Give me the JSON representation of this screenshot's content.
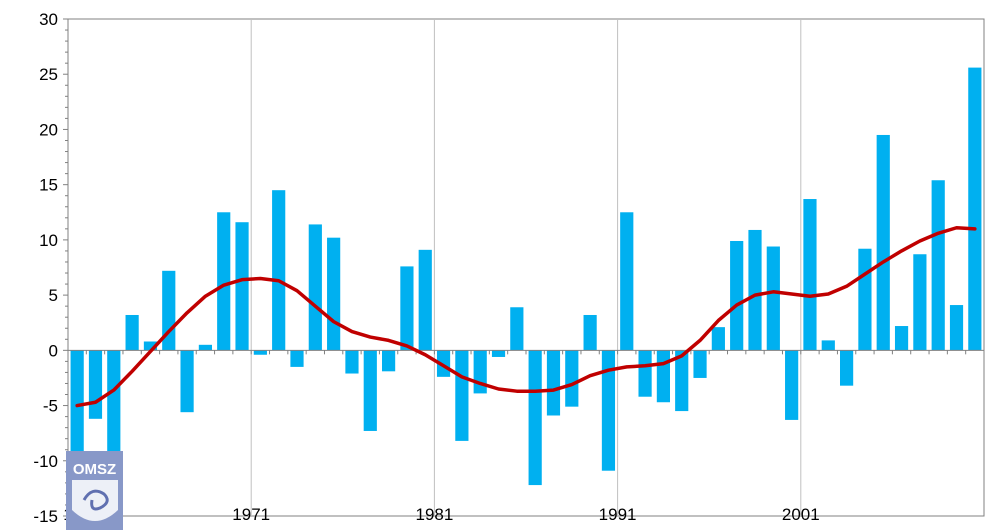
{
  "chart_data": {
    "type": "bar",
    "title": "",
    "xlabel": "",
    "ylabel": "",
    "ylim": [
      -15,
      30
    ],
    "yticks": [
      -15,
      -10,
      -5,
      0,
      5,
      10,
      15,
      20,
      25,
      30
    ],
    "xtick_labels": [
      {
        "year": 1961,
        "label": "1"
      },
      {
        "year": 1971,
        "label": "1971"
      },
      {
        "year": 1981,
        "label": "1981"
      },
      {
        "year": 1991,
        "label": "1991"
      },
      {
        "year": 2001,
        "label": "2001"
      }
    ],
    "x_range": [
      1960.5,
      2010.5
    ],
    "grid": "vertical lines at labelled years",
    "legend": "none",
    "colors": {
      "bars": "#00b0f0",
      "trend": "#c00000",
      "grid": "#c0c0c0",
      "axis": "#808080"
    },
    "series": [
      {
        "type": "bar",
        "x": [
          1961,
          1962,
          1963,
          1964,
          1965,
          1966,
          1967,
          1968,
          1969,
          1970,
          1971,
          1972,
          1973,
          1974,
          1975,
          1976,
          1977,
          1978,
          1979,
          1980,
          1981,
          1982,
          1983,
          1984,
          1985,
          1986,
          1987,
          1988,
          1989,
          1990,
          1991,
          1992,
          1993,
          1994,
          1995,
          1996,
          1997,
          1998,
          1999,
          2000,
          2001,
          2002,
          2003,
          2004,
          2005,
          2006,
          2007,
          2008,
          2009,
          2010
        ],
        "values": [
          -10.3,
          -6.2,
          -11.6,
          3.2,
          0.8,
          7.2,
          -5.6,
          0.5,
          12.5,
          11.6,
          -0.4,
          14.5,
          -1.5,
          11.4,
          10.2,
          -2.1,
          -7.3,
          -1.9,
          7.6,
          9.1,
          -2.4,
          -8.2,
          -3.9,
          -0.6,
          3.9,
          -12.2,
          -5.9,
          -5.1,
          3.2,
          -10.9,
          12.5,
          -4.2,
          -4.7,
          -5.5,
          -2.5,
          2.1,
          9.9,
          10.9,
          9.4,
          -6.3,
          13.7,
          0.9,
          -3.2,
          9.2,
          19.5,
          2.2,
          8.7,
          15.4,
          4.1,
          25.6
        ]
      },
      {
        "type": "line",
        "x": [
          1961,
          1962,
          1963,
          1964,
          1965,
          1966,
          1967,
          1968,
          1969,
          1970,
          1971,
          1972,
          1973,
          1974,
          1975,
          1976,
          1977,
          1978,
          1979,
          1980,
          1981,
          1982,
          1983,
          1984,
          1985,
          1986,
          1987,
          1988,
          1989,
          1990,
          1991,
          1992,
          1993,
          1994,
          1995,
          1996,
          1997,
          1998,
          1999,
          2000,
          2001,
          2002,
          2003,
          2004,
          2005,
          2006,
          2007,
          2008,
          2009,
          2010
        ],
        "values": [
          -5.0,
          -4.7,
          -3.6,
          -1.9,
          -0.1,
          1.7,
          3.4,
          4.9,
          5.9,
          6.4,
          6.5,
          6.3,
          5.4,
          4.0,
          2.6,
          1.7,
          1.2,
          0.9,
          0.4,
          -0.4,
          -1.4,
          -2.4,
          -3.0,
          -3.5,
          -3.7,
          -3.7,
          -3.6,
          -3.1,
          -2.3,
          -1.8,
          -1.5,
          -1.4,
          -1.2,
          -0.5,
          0.9,
          2.7,
          4.1,
          5.0,
          5.3,
          5.1,
          4.9,
          5.1,
          5.8,
          6.9,
          8.0,
          9.0,
          9.9,
          10.6,
          11.1,
          11.0
        ]
      }
    ]
  },
  "logo": {
    "text": "OMSZ"
  }
}
